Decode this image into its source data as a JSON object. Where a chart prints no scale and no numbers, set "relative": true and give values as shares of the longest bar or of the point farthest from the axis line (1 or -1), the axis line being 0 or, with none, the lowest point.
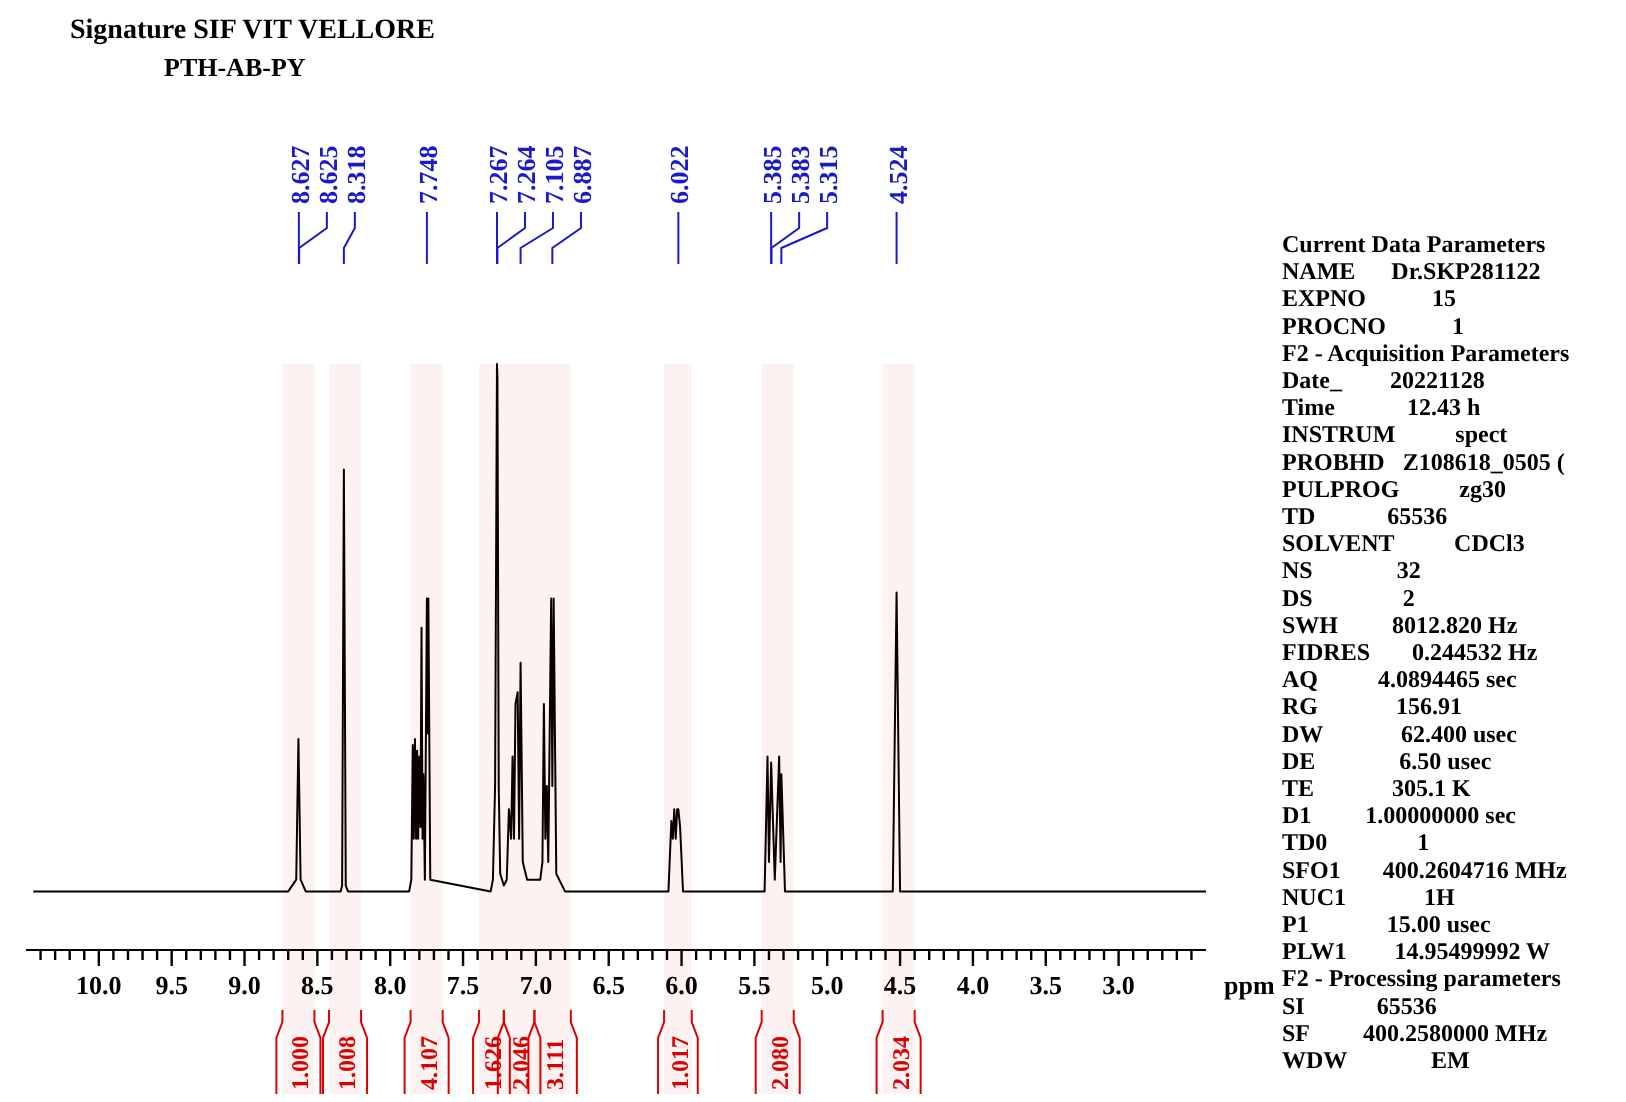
{
  "chart_data": {
    "type": "line",
    "title": "Signature SIF VIT VELLORE",
    "subtitle": "PTH-AB-PY",
    "xlabel": "ppm",
    "relative": true,
    "xlim": [
      10.5,
      2.4
    ],
    "xticks": [
      {
        "value": 10.4,
        "label": null
      },
      {
        "value": 10.3,
        "label": null
      },
      {
        "value": 10.2,
        "label": null
      },
      {
        "value": 10.1,
        "label": null
      },
      {
        "value": 10.0,
        "label": "10.0"
      },
      {
        "value": 9.9,
        "label": null
      },
      {
        "value": 9.8,
        "label": null
      },
      {
        "value": 9.7,
        "label": null
      },
      {
        "value": 9.6,
        "label": null
      },
      {
        "value": 9.5,
        "label": "9.5"
      },
      {
        "value": 9.4,
        "label": null
      },
      {
        "value": 9.3,
        "label": null
      },
      {
        "value": 9.2,
        "label": null
      },
      {
        "value": 9.1,
        "label": null
      },
      {
        "value": 9.0,
        "label": "9.0"
      },
      {
        "value": 8.9,
        "label": null
      },
      {
        "value": 8.8,
        "label": null
      },
      {
        "value": 8.7,
        "label": null
      },
      {
        "value": 8.6,
        "label": null
      },
      {
        "value": 8.5,
        "label": "8.5"
      },
      {
        "value": 8.4,
        "label": null
      },
      {
        "value": 8.3,
        "label": null
      },
      {
        "value": 8.2,
        "label": null
      },
      {
        "value": 8.1,
        "label": null
      },
      {
        "value": 8.0,
        "label": "8.0"
      },
      {
        "value": 7.9,
        "label": null
      },
      {
        "value": 7.8,
        "label": null
      },
      {
        "value": 7.7,
        "label": null
      },
      {
        "value": 7.6,
        "label": null
      },
      {
        "value": 7.5,
        "label": "7.5"
      },
      {
        "value": 7.4,
        "label": null
      },
      {
        "value": 7.3,
        "label": null
      },
      {
        "value": 7.2,
        "label": null
      },
      {
        "value": 7.1,
        "label": null
      },
      {
        "value": 7.0,
        "label": "7.0"
      },
      {
        "value": 6.9,
        "label": null
      },
      {
        "value": 6.8,
        "label": null
      },
      {
        "value": 6.7,
        "label": null
      },
      {
        "value": 6.6,
        "label": null
      },
      {
        "value": 6.5,
        "label": "6.5"
      },
      {
        "value": 6.4,
        "label": null
      },
      {
        "value": 6.3,
        "label": null
      },
      {
        "value": 6.2,
        "label": null
      },
      {
        "value": 6.1,
        "label": null
      },
      {
        "value": 6.0,
        "label": "6.0"
      },
      {
        "value": 5.9,
        "label": null
      },
      {
        "value": 5.8,
        "label": null
      },
      {
        "value": 5.7,
        "label": null
      },
      {
        "value": 5.6,
        "label": null
      },
      {
        "value": 5.5,
        "label": "5.5"
      },
      {
        "value": 5.4,
        "label": null
      },
      {
        "value": 5.3,
        "label": null
      },
      {
        "value": 5.2,
        "label": null
      },
      {
        "value": 5.1,
        "label": null
      },
      {
        "value": 5.0,
        "label": "5.0"
      },
      {
        "value": 4.9,
        "label": null
      },
      {
        "value": 4.8,
        "label": null
      },
      {
        "value": 4.7,
        "label": null
      },
      {
        "value": 4.6,
        "label": null
      },
      {
        "value": 4.5,
        "label": "4.5"
      },
      {
        "value": 4.4,
        "label": null
      },
      {
        "value": 4.3,
        "label": null
      },
      {
        "value": 4.2,
        "label": null
      },
      {
        "value": 4.1,
        "label": null
      },
      {
        "value": 4.0,
        "label": "4.0"
      },
      {
        "value": 3.9,
        "label": null
      },
      {
        "value": 3.8,
        "label": null
      },
      {
        "value": 3.7,
        "label": null
      },
      {
        "value": 3.6,
        "label": null
      },
      {
        "value": 3.5,
        "label": "3.5"
      },
      {
        "value": 3.4,
        "label": null
      },
      {
        "value": 3.3,
        "label": null
      },
      {
        "value": 3.2,
        "label": null
      },
      {
        "value": 3.1,
        "label": null
      },
      {
        "value": 3.0,
        "label": "3.0"
      },
      {
        "value": 2.9,
        "label": null
      },
      {
        "value": 2.8,
        "label": null
      },
      {
        "value": 2.7,
        "label": null
      },
      {
        "value": 2.6,
        "label": null
      },
      {
        "value": 2.5,
        "label": null
      }
    ],
    "series": [
      {
        "color": "#000000",
        "x": [
          10.45,
          8.7,
          8.645,
          8.63,
          8.615,
          8.58,
          8.34,
          8.33,
          8.318,
          8.305,
          8.29,
          7.87,
          7.855,
          7.845,
          7.838,
          7.83,
          7.822,
          7.815,
          7.808,
          7.8,
          7.792,
          7.785,
          7.778,
          7.772,
          7.762,
          7.748,
          7.743,
          7.738,
          7.725,
          7.31,
          7.295,
          7.28,
          7.267,
          7.264,
          7.255,
          7.245,
          7.22,
          7.2,
          7.185,
          7.17,
          7.16,
          7.15,
          7.14,
          7.125,
          7.115,
          7.105,
          7.09,
          7.06,
          6.97,
          6.955,
          6.945,
          6.935,
          6.925,
          6.915,
          6.895,
          6.887,
          6.878,
          6.86,
          6.8,
          6.09,
          6.07,
          6.06,
          6.05,
          6.04,
          6.03,
          6.022,
          6.01,
          5.99,
          5.43,
          5.41,
          5.4,
          5.385,
          5.36,
          5.33,
          5.32,
          5.315,
          5.29,
          4.55,
          4.524,
          4.5,
          2.4
        ],
        "values": [
          0.1,
          0.1,
          0.12,
          0.36,
          0.12,
          0.1,
          0.1,
          0.11,
          0.82,
          0.11,
          0.1,
          0.1,
          0.12,
          0.35,
          0.19,
          0.36,
          0.19,
          0.34,
          0.19,
          0.33,
          0.21,
          0.55,
          0.19,
          0.3,
          0.12,
          0.6,
          0.37,
          0.6,
          0.12,
          0.1,
          0.12,
          0.28,
          1,
          0.98,
          0.28,
          0.13,
          0.11,
          0.12,
          0.24,
          0.19,
          0.33,
          0.19,
          0.42,
          0.44,
          0.19,
          0.49,
          0.15,
          0.12,
          0.12,
          0.15,
          0.42,
          0.19,
          0.28,
          0.15,
          0.6,
          0.28,
          0.6,
          0.13,
          0.1,
          0.1,
          0.22,
          0.19,
          0.24,
          0.19,
          0.24,
          0.24,
          0.21,
          0.1,
          0.1,
          0.33,
          0.15,
          0.32,
          0.12,
          0.33,
          0.15,
          0.3,
          0.1,
          0.1,
          0.61,
          0.1,
          0.1
        ]
      }
    ],
    "bands": [
      {
        "axis": "x",
        "from": 8.74,
        "to": 8.52,
        "label": "1.000",
        "color": "#dd0000"
      },
      {
        "axis": "x",
        "from": 8.42,
        "to": 8.2,
        "label": "1.008",
        "color": "#dd0000"
      },
      {
        "axis": "x",
        "from": 7.86,
        "to": 7.64,
        "label": "4.107",
        "color": "#dd0000"
      },
      {
        "axis": "x",
        "from": 7.39,
        "to": 7.22,
        "label": "1.626",
        "color": "#dd0000"
      },
      {
        "axis": "x",
        "from": 7.22,
        "to": 7.01,
        "label": "2.046",
        "color": "#dd0000"
      },
      {
        "axis": "x",
        "from": 7.01,
        "to": 6.76,
        "label": "3.111",
        "color": "#dd0000"
      },
      {
        "axis": "x",
        "from": 6.12,
        "to": 5.93,
        "label": "1.017",
        "color": "#dd0000"
      },
      {
        "axis": "x",
        "from": 5.45,
        "to": 5.23,
        "label": "2.080",
        "color": "#dd0000"
      },
      {
        "axis": "x",
        "from": 4.62,
        "to": 4.4,
        "label": "2.034",
        "color": "#dd0000"
      }
    ],
    "annotations": [
      "8.627",
      "8.625",
      "8.318",
      "7.748",
      "7.267",
      "7.264",
      "7.105",
      "6.887",
      "6.022",
      "5.385",
      "5.383",
      "5.315",
      "4.524",
      "Current Data Parameters",
      "NAME      Dr.SKP281122",
      "EXPNO           15",
      "PROCNO           1",
      "F2 - Acquisition Parameters",
      "Date_        20221128",
      "Time            12.43 h",
      "INSTRUM          spect",
      "PROBHD   Z108618_0505 (",
      "PULPROG          zg30",
      "TD            65536",
      "SOLVENT          CDCl3",
      "NS              32",
      "DS               2",
      "SWH         8012.820 Hz",
      "FIDRES       0.244532 Hz",
      "AQ          4.0894465 sec",
      "RG             156.91",
      "DW             62.400 usec",
      "DE              6.50 usec",
      "TE             305.1 K",
      "D1         1.00000000 sec",
      "TD0               1",
      "SFO1       400.2604716 MHz",
      "NUC1             1H",
      "P1             15.00 usec",
      "PLW1        14.95499992 W",
      "F2 - Processing parameters",
      "SI            65536",
      "SF         400.2580000 MHz",
      "WDW              EM"
    ]
  }
}
